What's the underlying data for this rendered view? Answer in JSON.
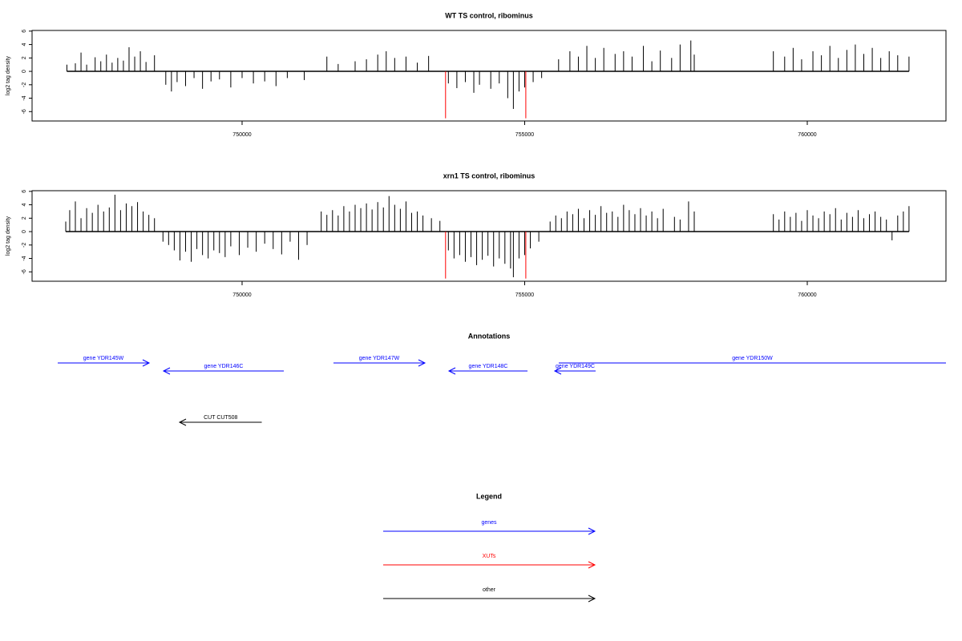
{
  "chart_data": [
    {
      "type": "bar",
      "title": "WT TS control, ribominus",
      "ylabel": "log2 tag density",
      "xlim": [
        746284,
        762454
      ],
      "ylim": [
        -7.4,
        6.1
      ],
      "xticks": [
        750000,
        755000,
        760000
      ],
      "yticks": [
        -6,
        -4,
        -2,
        0,
        2,
        4,
        6
      ],
      "series": [
        {
          "color": "#000000",
          "x": [
            746900,
            747050,
            747150,
            747250,
            747400,
            747500,
            747600,
            747700,
            747800,
            747900,
            748000,
            748100,
            748200,
            748300,
            748450,
            748650,
            748750,
            748850,
            749000,
            749150,
            749300,
            749450,
            749600,
            749800,
            750000,
            750200,
            750400,
            750600,
            750800,
            751100,
            751500,
            751700,
            752000,
            752200,
            752400,
            752550,
            752700,
            752900,
            753100,
            753300,
            753650,
            753800,
            753950,
            754100,
            754200,
            754400,
            754550,
            754700,
            754800,
            754900,
            755000,
            755150,
            755300,
            755600,
            755800,
            755950,
            756100,
            756250,
            756400,
            756600,
            756750,
            756900,
            757100,
            757250,
            757400,
            757600,
            757750,
            757940,
            758000,
            759400,
            759600,
            759750,
            759900,
            760100,
            760250,
            760400,
            760550,
            760700,
            760850,
            761000,
            761150,
            761300,
            761450,
            761600,
            761800
          ],
          "values": [
            1.0,
            1.2,
            2.8,
            1.0,
            2.1,
            1.5,
            2.5,
            1.3,
            2.0,
            1.6,
            3.6,
            2.2,
            3.0,
            1.4,
            2.4,
            -2.0,
            -3.0,
            -1.6,
            -2.2,
            -1.0,
            -2.6,
            -1.5,
            -1.2,
            -2.4,
            -1.0,
            -1.8,
            -1.5,
            -2.2,
            -1.0,
            -1.3,
            2.2,
            1.1,
            1.5,
            1.8,
            2.5,
            3.0,
            2.0,
            2.2,
            1.3,
            2.3,
            -1.8,
            -2.5,
            -1.6,
            -3.2,
            -2.0,
            -2.6,
            -1.8,
            -4.0,
            -5.6,
            -3.0,
            -2.4,
            -1.6,
            -1.0,
            1.8,
            3.0,
            2.2,
            3.8,
            2.0,
            3.5,
            2.6,
            3.0,
            2.2,
            3.8,
            1.5,
            3.1,
            2.0,
            4.0,
            4.6,
            2.5,
            3.0,
            2.2,
            3.5,
            1.8,
            3.0,
            2.4,
            3.8,
            2.0,
            3.2,
            4.0,
            2.6,
            3.5,
            2.0,
            3.0,
            2.4,
            2.2
          ]
        },
        {
          "color": "#ff0000",
          "x": [
            753600,
            755020
          ],
          "values": [
            -7.0,
            -7.0
          ]
        }
      ]
    },
    {
      "type": "bar",
      "title": "xrn1 TS control, ribominus",
      "ylabel": "log2 tag density",
      "xlim": [
        746284,
        762454
      ],
      "ylim": [
        -7.4,
        6.1
      ],
      "xticks": [
        750000,
        755000,
        760000
      ],
      "yticks": [
        -6,
        -4,
        -2,
        0,
        2,
        4,
        6
      ],
      "series": [
        {
          "color": "#000000",
          "x": [
            746880,
            746950,
            747050,
            747150,
            747250,
            747350,
            747450,
            747550,
            747650,
            747750,
            747850,
            747950,
            748050,
            748150,
            748250,
            748350,
            748450,
            748600,
            748700,
            748800,
            748900,
            749000,
            749100,
            749200,
            749300,
            749400,
            749500,
            749600,
            749700,
            749800,
            749950,
            750100,
            750250,
            750400,
            750550,
            750700,
            750850,
            751000,
            751150,
            751400,
            751500,
            751600,
            751700,
            751800,
            751900,
            752000,
            752100,
            752200,
            752300,
            752400,
            752500,
            752600,
            752700,
            752800,
            752900,
            753000,
            753100,
            753200,
            753350,
            753500,
            753650,
            753750,
            753850,
            753950,
            754050,
            754150,
            754250,
            754350,
            754450,
            754550,
            754650,
            754750,
            754800,
            754900,
            755000,
            755100,
            755250,
            755450,
            755550,
            755650,
            755750,
            755850,
            755950,
            756050,
            756150,
            756250,
            756350,
            756450,
            756550,
            756650,
            756750,
            756850,
            756950,
            757050,
            757150,
            757250,
            757350,
            757450,
            757650,
            757750,
            757900,
            758000,
            759400,
            759500,
            759600,
            759700,
            759800,
            759900,
            760000,
            760100,
            760200,
            760300,
            760400,
            760500,
            760600,
            760700,
            760800,
            760900,
            761000,
            761100,
            761200,
            761300,
            761400,
            761500,
            761600,
            761700,
            761800
          ],
          "values": [
            1.5,
            3.2,
            4.5,
            2.0,
            3.5,
            2.8,
            4.0,
            3.0,
            3.6,
            5.5,
            3.2,
            4.2,
            3.8,
            4.4,
            3.0,
            2.5,
            2.0,
            -1.5,
            -2.0,
            -2.8,
            -4.3,
            -3.0,
            -4.5,
            -2.6,
            -3.5,
            -4.0,
            -2.8,
            -3.2,
            -3.8,
            -2.2,
            -3.5,
            -2.4,
            -3.0,
            -1.8,
            -2.6,
            -3.4,
            -1.5,
            -4.2,
            -2.0,
            3.0,
            2.5,
            3.2,
            2.4,
            3.8,
            3.0,
            4.0,
            3.5,
            4.2,
            3.3,
            4.4,
            3.6,
            5.3,
            4.0,
            3.4,
            4.5,
            2.8,
            3.0,
            2.4,
            2.0,
            1.6,
            -2.8,
            -4.0,
            -3.5,
            -4.5,
            -3.8,
            -5.0,
            -4.2,
            -3.6,
            -5.2,
            -4.0,
            -4.8,
            -5.5,
            -6.8,
            -4.0,
            -3.5,
            -2.5,
            -1.5,
            1.5,
            2.4,
            2.0,
            3.0,
            2.6,
            3.4,
            2.0,
            3.2,
            2.5,
            3.8,
            2.8,
            3.0,
            2.2,
            4.0,
            3.2,
            2.6,
            3.5,
            2.4,
            3.0,
            2.0,
            3.4,
            2.2,
            1.8,
            4.5,
            3.0,
            2.6,
            1.8,
            3.0,
            2.2,
            2.8,
            1.6,
            3.2,
            2.4,
            2.0,
            3.0,
            2.6,
            3.5,
            1.8,
            2.8,
            2.2,
            3.2,
            2.0,
            2.6,
            3.0,
            2.2,
            1.8,
            -1.3,
            2.4,
            3.0,
            3.8
          ]
        },
        {
          "color": "#ff0000",
          "x": [
            753600,
            755020
          ],
          "values": [
            -7.0,
            -7.0
          ]
        }
      ]
    }
  ],
  "annotations": {
    "title": "Annotations",
    "xlim": [
      746284,
      762454
    ],
    "features": [
      {
        "label": "gene YDR145W",
        "start": 746738,
        "end": 748355,
        "color": "#0000ff"
      },
      {
        "label": "gene YDR146C",
        "start": 750738,
        "end": 748610,
        "color": "#0000ff"
      },
      {
        "label": "gene YDR147W",
        "start": 751617,
        "end": 753234,
        "color": "#0000ff"
      },
      {
        "label": "gene YDR148C",
        "start": 755050,
        "end": 753660,
        "color": "#0000ff"
      },
      {
        "label": "gene YDR149C",
        "start": 756255,
        "end": 755532,
        "color": "#0000ff"
      },
      {
        "label": "gene YDR150W",
        "start": 755603,
        "end": 762454,
        "color": "#0000ff"
      },
      {
        "label": "CUT CUT508",
        "start": 750348,
        "end": 748894,
        "color": "#000000"
      }
    ]
  },
  "legend": {
    "title": "Legend",
    "entries": [
      {
        "label": "genes",
        "color": "#0000ff"
      },
      {
        "label": "XUTs",
        "color": "#ff0000"
      },
      {
        "label": "other",
        "color": "#000000"
      }
    ]
  }
}
